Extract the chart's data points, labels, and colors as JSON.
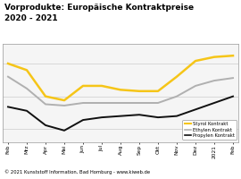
{
  "title_line1": "Vorprodukte: Europäische Kontraktpreise",
  "title_line2": "2020 - 2021",
  "title_bg": "#f5c518",
  "x_labels": [
    "Feb",
    "Mrz",
    "Apr",
    "Mai",
    "Jun",
    "Jul",
    "Aug",
    "Sep",
    "Okt",
    "Nov",
    "Dez",
    "2021",
    "Feb"
  ],
  "styrol": [
    1000,
    950,
    750,
    720,
    830,
    830,
    800,
    790,
    790,
    900,
    1020,
    1050,
    1060
  ],
  "ethylen": [
    900,
    810,
    690,
    680,
    700,
    700,
    700,
    700,
    700,
    750,
    830,
    870,
    890
  ],
  "propylen": [
    670,
    640,
    530,
    490,
    570,
    590,
    600,
    610,
    590,
    600,
    650,
    700,
    750
  ],
  "styrol_color": "#f5c518",
  "ethylen_color": "#b0b0b0",
  "propylen_color": "#111111",
  "footer_text": "© 2021 Kunststoff Information, Bad Homburg - www.kiweb.de",
  "footer_bg": "#999999",
  "plot_bg": "#ffffff",
  "chart_bg": "#f5f5f5",
  "grid_color": "#cccccc",
  "legend_labels": [
    "Styrol Kontrakt",
    "Ethylen Kontrakt",
    "Propylen Kontrakt"
  ]
}
